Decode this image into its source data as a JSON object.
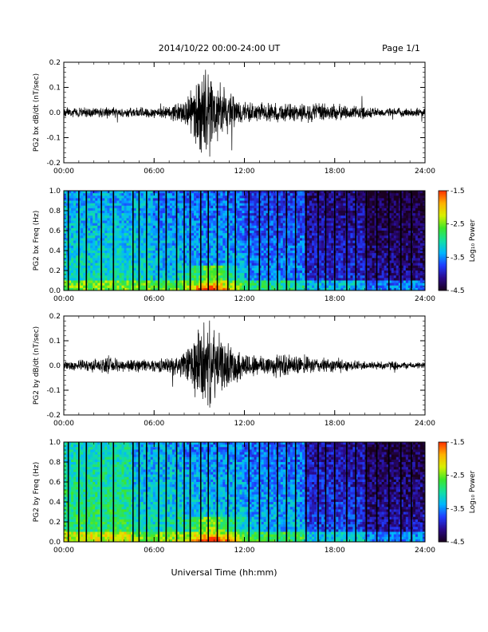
{
  "header": {
    "date_range": "2014/10/22  00:00-24:00 UT",
    "page": "Page 1/1"
  },
  "xaxis": {
    "label": "Universal Time (hh:mm)",
    "ticks": [
      "00:00",
      "06:00",
      "12:00",
      "18:00",
      "24:00"
    ]
  },
  "colorbar": {
    "label": "Log₁₀ Power",
    "ticks": [
      "-1.5",
      "-2.5",
      "-3.5",
      "-4.5"
    ]
  },
  "colors": {
    "trace": "#000000",
    "colormap": [
      "#1a001f",
      "#2a0a8a",
      "#1f3cff",
      "#00b6ff",
      "#14e0a0",
      "#3ee62a",
      "#d8f000",
      "#ffb000",
      "#ff3000"
    ]
  },
  "chart_data": [
    {
      "type": "line",
      "ylabel": "PG2 bx dB/dt (nT/sec)",
      "xlim": [
        0,
        24
      ],
      "ylim": [
        -0.2,
        0.2
      ],
      "yticks": [
        "0.2",
        "0.1",
        "0.0",
        "-0.1",
        "-0.2"
      ],
      "xticks": [
        "00:00",
        "06:00",
        "12:00",
        "18:00",
        "24:00"
      ],
      "series": [
        {
          "x": [
            0,
            1,
            2,
            3,
            4,
            5,
            6,
            7,
            8,
            8.5,
            9,
            9.5,
            10,
            10.5,
            11,
            12,
            13,
            14,
            15,
            16,
            17,
            18,
            19,
            20,
            21,
            22,
            23,
            24
          ],
          "amplitude": [
            0.02,
            0.025,
            0.02,
            0.03,
            0.02,
            0.025,
            0.025,
            0.03,
            0.06,
            0.1,
            0.18,
            0.2,
            0.15,
            0.12,
            0.09,
            0.05,
            0.04,
            0.045,
            0.04,
            0.045,
            0.045,
            0.04,
            0.03,
            0.03,
            0.02,
            0.02,
            0.02,
            0.02
          ]
        }
      ]
    },
    {
      "type": "heatmap",
      "ylabel": "PG2 bx Freq (Hz)",
      "xlim": [
        0,
        24
      ],
      "ylim": [
        0.0,
        1.0
      ],
      "yticks": [
        "1.0",
        "0.8",
        "0.6",
        "0.4",
        "0.2",
        "0.0"
      ],
      "xticks": [
        "00:00",
        "06:00",
        "12:00",
        "18:00",
        "24:00"
      ],
      "color_scale": {
        "label": "Log₁₀ Power",
        "min": -4.5,
        "max": -1.5
      },
      "data_gaps_hours": [
        0.3,
        1.0,
        1.5,
        2.5,
        3.3,
        4.6,
        5.0,
        5.5,
        6.3,
        6.8,
        7.5,
        8.0,
        8.4,
        9.1,
        9.6,
        10.2,
        10.9,
        11.4,
        12.3,
        13.0,
        13.6,
        14.2,
        14.8,
        15.4,
        16.1,
        16.9,
        17.4,
        18.0,
        18.8,
        19.4,
        20.1,
        20.8,
        21.6,
        22.4,
        23.1
      ]
    },
    {
      "type": "line",
      "ylabel": "PG2 by dB/dt (nT/sec)",
      "xlim": [
        0,
        24
      ],
      "ylim": [
        -0.2,
        0.2
      ],
      "yticks": [
        "0.2",
        "0.1",
        "0.0",
        "-0.1",
        "-0.2"
      ],
      "xticks": [
        "00:00",
        "06:00",
        "12:00",
        "18:00",
        "24:00"
      ],
      "series": [
        {
          "x": [
            0,
            1,
            2,
            3,
            4,
            5,
            6,
            7,
            8,
            8.5,
            9,
            9.5,
            10,
            10.5,
            11,
            12,
            13,
            14,
            15,
            16,
            17,
            18,
            19,
            20,
            21,
            22,
            23,
            24
          ],
          "amplitude": [
            0.02,
            0.025,
            0.03,
            0.035,
            0.03,
            0.03,
            0.03,
            0.035,
            0.06,
            0.12,
            0.19,
            0.2,
            0.17,
            0.12,
            0.1,
            0.06,
            0.05,
            0.055,
            0.05,
            0.04,
            0.035,
            0.03,
            0.025,
            0.02,
            0.02,
            0.02,
            0.015,
            0.015
          ]
        }
      ]
    },
    {
      "type": "heatmap",
      "ylabel": "PG2 by Freq (Hz)",
      "xlim": [
        0,
        24
      ],
      "ylim": [
        0.0,
        1.0
      ],
      "yticks": [
        "1.0",
        "0.8",
        "0.6",
        "0.4",
        "0.2",
        "0.0"
      ],
      "xticks": [
        "00:00",
        "06:00",
        "12:00",
        "18:00",
        "24:00"
      ],
      "color_scale": {
        "label": "Log₁₀ Power",
        "min": -4.5,
        "max": -1.5
      },
      "data_gaps_hours": [
        0.3,
        1.0,
        1.5,
        2.5,
        3.3,
        4.6,
        5.0,
        5.5,
        6.3,
        6.8,
        7.5,
        8.0,
        8.4,
        9.1,
        9.6,
        10.2,
        10.9,
        11.4,
        12.3,
        13.0,
        13.6,
        14.2,
        14.8,
        15.4,
        16.1,
        16.9,
        17.4,
        18.0,
        18.8,
        19.4,
        20.1,
        20.8,
        21.6,
        22.4,
        23.1
      ]
    }
  ]
}
